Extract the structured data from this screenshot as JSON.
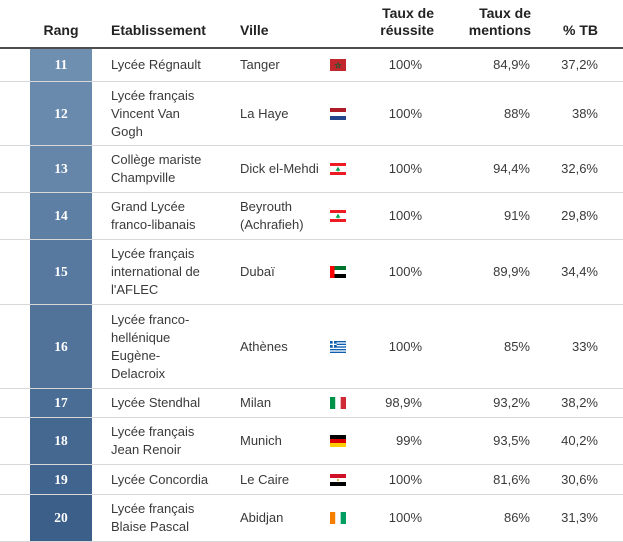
{
  "header": {
    "rang": "Rang",
    "etablissement": "Etablissement",
    "ville": "Ville",
    "taux_line1": "Taux de",
    "taux_line2": "réussite",
    "mentions_line1": "Taux de",
    "mentions_line2": "mentions",
    "tb": "% TB"
  },
  "rows": [
    {
      "rang": "11",
      "etab": "Lycée Régnault",
      "ville": "Tanger",
      "flag": "morocco-flag-icon",
      "taux": "100%",
      "mentions": "84,9%",
      "tb": "37,2%",
      "rank_color": "#6f8fb1"
    },
    {
      "rang": "12",
      "etab": "Lycée français Vincent Van Gogh",
      "ville": "La Haye",
      "flag": "netherlands-flag-icon",
      "taux": "100%",
      "mentions": "88%",
      "tb": "38%",
      "rank_color": "#6a8aad"
    },
    {
      "rang": "13",
      "etab": "Collège mariste Champville",
      "ville": "Dick el-Mehdi",
      "flag": "lebanon-flag-icon",
      "taux": "100%",
      "mentions": "94,4%",
      "tb": "32,6%",
      "rank_color": "#6585a9"
    },
    {
      "rang": "14",
      "etab": "Grand Lycée franco-libanais",
      "ville": "Beyrouth (Achrafieh)",
      "flag": "lebanon-flag-icon",
      "taux": "100%",
      "mentions": "91%",
      "tb": "29,8%",
      "rank_color": "#5e7fa4"
    },
    {
      "rang": "15",
      "etab": "Lycée français international de l'AFLEC",
      "ville": "Dubaï",
      "flag": "uae-flag-icon",
      "taux": "100%",
      "mentions": "89,9%",
      "tb": "34,4%",
      "rank_color": "#58799f"
    },
    {
      "rang": "16",
      "etab": "Lycée franco-hellénique Eugène-Delacroix",
      "ville": "Athènes",
      "flag": "greece-flag-icon",
      "taux": "100%",
      "mentions": "85%",
      "tb": "33%",
      "rank_color": "#51739a"
    },
    {
      "rang": "17",
      "etab": "Lycée Stendhal",
      "ville": "Milan",
      "flag": "italy-flag-icon",
      "taux": "98,9%",
      "mentions": "93,2%",
      "tb": "38,2%",
      "rank_color": "#4a6d95"
    },
    {
      "rang": "18",
      "etab": "Lycée français Jean Renoir",
      "ville": "Munich",
      "flag": "germany-flag-icon",
      "taux": "99%",
      "mentions": "93,5%",
      "tb": "40,2%",
      "rank_color": "#456891"
    },
    {
      "rang": "19",
      "etab": "Lycée Concordia",
      "ville": "Le Caire",
      "flag": "egypt-flag-icon",
      "taux": "100%",
      "mentions": "81,6%",
      "tb": "30,6%",
      "rank_color": "#40648d"
    },
    {
      "rang": "20",
      "etab": "Lycée français Blaise Pascal",
      "ville": "Abidjan",
      "flag": "ivory-coast-flag-icon",
      "taux": "100%",
      "mentions": "86%",
      "tb": "31,3%",
      "rank_color": "#3b5f89"
    }
  ]
}
